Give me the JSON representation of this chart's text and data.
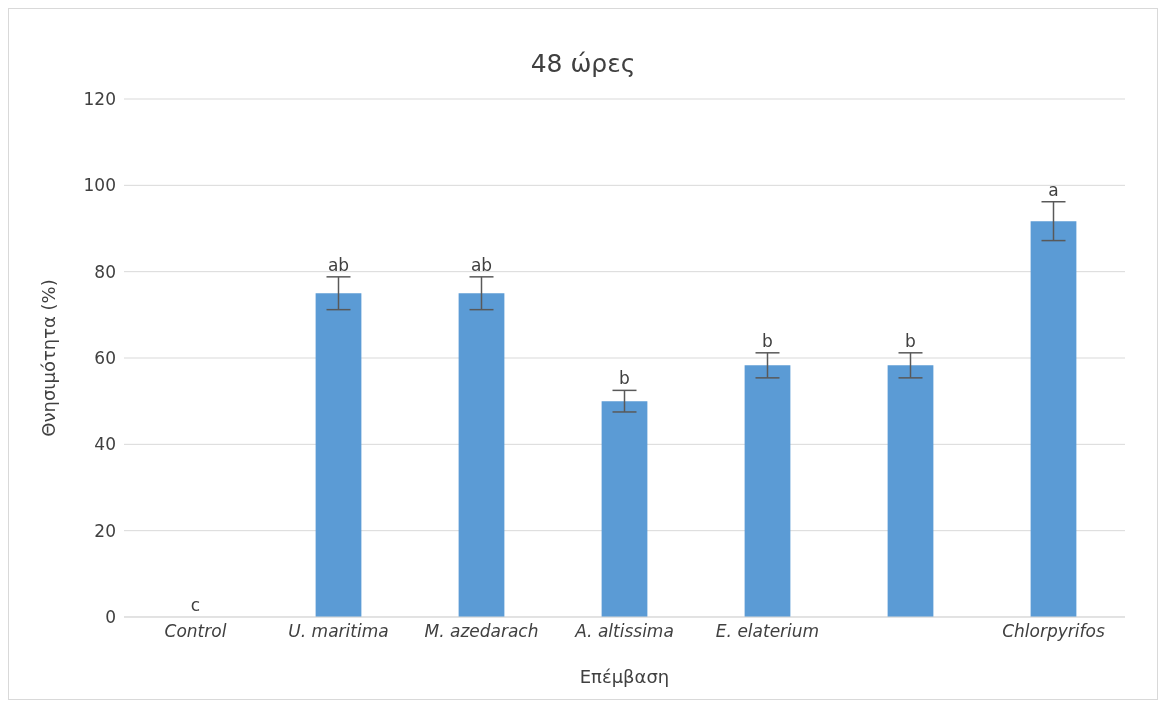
{
  "chart_data": {
    "type": "bar",
    "title": "48 ώρες",
    "xlabel": "Επέμβαση",
    "ylabel": "Θνησιμότητα (%)",
    "categories": [
      "Control",
      "U. maritima",
      "M. azedarach",
      "A. altissima",
      "E. elaterium",
      null,
      "Chlorpyrifos"
    ],
    "values": [
      0,
      75,
      75,
      50,
      58.3,
      58.3,
      91.7
    ],
    "errors": [
      null,
      3.8,
      3.8,
      2.5,
      2.9,
      2.9,
      4.5
    ],
    "value_labels": [
      "c",
      "ab",
      "ab",
      "b",
      "b",
      "b",
      "a"
    ],
    "color": "#5b9bd5",
    "ylim": [
      0,
      120
    ],
    "yticks": [
      0,
      20,
      40,
      60,
      80,
      100,
      120
    ],
    "grid": "y"
  }
}
